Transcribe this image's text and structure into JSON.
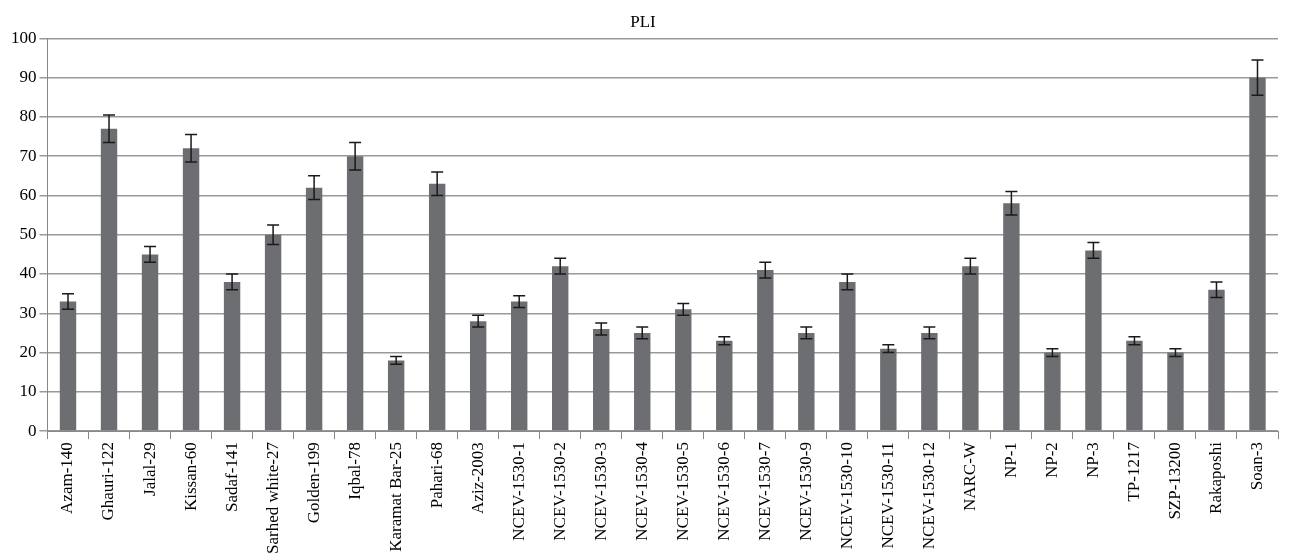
{
  "chart_data": {
    "type": "bar",
    "title": "PLI",
    "categories": [
      "Azam-140",
      "Ghauri-122",
      "Jalal-29",
      "Kissan-60",
      "Sadaf-141",
      "Sarhed white-27",
      "Golden-199",
      "Iqbal-78",
      "Karamat Bar-25",
      "Pahari-68",
      "Aziz-2003",
      "NCEV-1530-1",
      "NCEV-1530-2",
      "NCEV-1530-3",
      "NCEV-1530-4",
      "NCEV-1530-5",
      "NCEV-1530-6",
      "NCEV-1530-7",
      "NCEV-1530-9",
      "NCEV-1530-10",
      "NCEV-1530-11",
      "NCEV-1530-12",
      "NARC-W",
      "NP-1",
      "NP-2",
      "NP-3",
      "TP-1217",
      "SZP-13200",
      "Rakaposhi",
      "Soan-3"
    ],
    "values": [
      33,
      77,
      45,
      72,
      38,
      50,
      62,
      70,
      18,
      63,
      28,
      33,
      42,
      26,
      25,
      31,
      23,
      41,
      25,
      38,
      21,
      25,
      42,
      58,
      20,
      46,
      23,
      20,
      36,
      90
    ],
    "errors": [
      2,
      3.5,
      2,
      3.5,
      2,
      2.5,
      3,
      3.5,
      1,
      3,
      1.5,
      1.5,
      2,
      1.5,
      1.5,
      1.5,
      1,
      2,
      1.5,
      2,
      1,
      1.5,
      2,
      3,
      1,
      2,
      1,
      1,
      2,
      4.5
    ],
    "color": "#6d6e71",
    "ylim": [
      0,
      100
    ],
    "yticks": [
      0,
      10,
      20,
      30,
      40,
      50,
      60,
      70,
      80,
      90,
      100
    ],
    "grid": "y",
    "legend": false
  }
}
